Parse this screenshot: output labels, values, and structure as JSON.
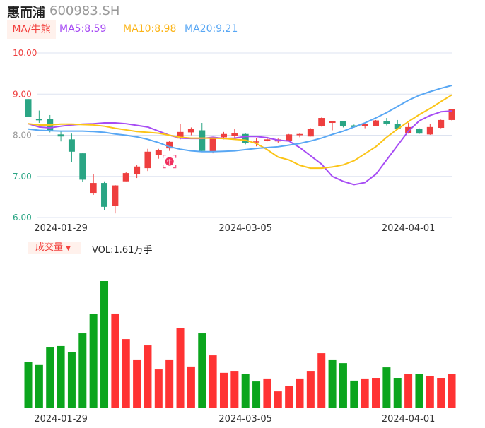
{
  "header": {
    "name": "惠而浦",
    "code": "600983.SH",
    "ma_button": "MA/牛熊",
    "ma5": "MA5:8.59",
    "ma10": "MA10:8.98",
    "ma20": "MA20:9.21"
  },
  "volume_header": {
    "button": "成交量",
    "arrow": "▼",
    "value": "VOL:1.61万手"
  },
  "colors": {
    "up": "#ee3f3f",
    "down": "#2aa584",
    "vol_up": "#ff3333",
    "vol_down": "#0ba51d",
    "ma5": "#a64bf4",
    "ma10": "#fbc417",
    "ma20": "#58a7f4",
    "grid": "#dde3f0"
  },
  "icons": {
    "signal": "bull-signal-icon"
  },
  "chart_data": [
    {
      "type": "candlestick",
      "title": "惠而浦 600983.SH",
      "ylim": [
        6,
        10
      ],
      "y_ticks": [
        {
          "v": 10,
          "label": "10.00",
          "color": "#ee3f3f"
        },
        {
          "v": 9,
          "label": "9.00",
          "color": "#ee3f3f"
        },
        {
          "v": 8,
          "label": "8.00",
          "color": "#999999"
        },
        {
          "v": 7,
          "label": "7.00",
          "color": "#2aa584"
        },
        {
          "v": 6,
          "label": "6.00",
          "color": "#2aa584"
        }
      ],
      "x_ticks": [
        {
          "index": 3,
          "label": "2024-01-29"
        },
        {
          "index": 20,
          "label": "2024-03-05"
        },
        {
          "index": 35,
          "label": "2024-04-01"
        }
      ],
      "ohlc": [
        [
          8.88,
          8.45,
          8.88,
          8.45
        ],
        [
          8.39,
          8.37,
          8.6,
          8.3
        ],
        [
          8.4,
          8.1,
          8.49,
          8.07
        ],
        [
          8.02,
          7.97,
          8.1,
          7.85
        ],
        [
          7.9,
          7.6,
          8.04,
          7.34
        ],
        [
          7.56,
          6.92,
          7.56,
          6.86
        ],
        [
          6.6,
          6.84,
          7.06,
          6.55
        ],
        [
          6.84,
          6.26,
          6.88,
          6.18
        ],
        [
          6.28,
          6.78,
          6.79,
          6.1
        ],
        [
          6.88,
          7.08,
          7.1,
          6.88
        ],
        [
          7.06,
          7.24,
          7.27,
          6.96
        ],
        [
          7.2,
          7.6,
          7.67,
          7.13
        ],
        [
          7.52,
          7.64,
          7.67,
          7.43
        ],
        [
          7.68,
          7.84,
          7.86,
          7.62
        ],
        [
          7.92,
          8.08,
          8.27,
          7.9
        ],
        [
          8.07,
          8.15,
          8.19,
          8.0
        ],
        [
          8.12,
          7.62,
          8.3,
          7.6
        ],
        [
          7.6,
          7.94,
          7.96,
          7.56
        ],
        [
          7.95,
          8.03,
          8.08,
          7.9
        ],
        [
          7.98,
          8.05,
          8.15,
          7.93
        ],
        [
          8.03,
          7.82,
          8.05,
          7.78
        ],
        [
          7.83,
          7.85,
          7.93,
          7.73
        ],
        [
          7.86,
          7.9,
          7.96,
          7.85
        ],
        [
          7.85,
          7.9,
          7.92,
          7.82
        ],
        [
          7.86,
          8.02,
          8.03,
          7.85
        ],
        [
          8.0,
          8.03,
          8.05,
          7.95
        ],
        [
          7.97,
          8.16,
          8.17,
          7.97
        ],
        [
          8.22,
          8.42,
          8.43,
          8.21
        ],
        [
          8.3,
          8.35,
          8.35,
          8.12
        ],
        [
          8.35,
          8.23,
          8.35,
          8.19
        ],
        [
          8.24,
          8.2,
          8.26,
          8.18
        ],
        [
          8.22,
          8.27,
          8.28,
          8.17
        ],
        [
          8.22,
          8.36,
          8.37,
          8.22
        ],
        [
          8.34,
          8.28,
          8.42,
          8.24
        ],
        [
          8.28,
          8.15,
          8.37,
          8.13
        ],
        [
          8.06,
          8.2,
          8.3,
          8.04
        ],
        [
          8.15,
          8.04,
          8.17,
          8.03
        ],
        [
          8.02,
          8.2,
          8.27,
          8.01
        ],
        [
          8.18,
          8.37,
          8.38,
          8.17
        ],
        [
          8.37,
          8.63,
          8.64,
          8.36
        ]
      ],
      "series": [
        {
          "name": "MA5",
          "color": "#a64bf4",
          "values": [
            8.28,
            8.2,
            8.18,
            8.22,
            8.25,
            8.27,
            8.28,
            8.3,
            8.3,
            8.28,
            8.24,
            8.2,
            8.1,
            8.0,
            7.93,
            7.92,
            7.92,
            7.95,
            7.92,
            7.93,
            7.97,
            7.97,
            7.94,
            7.88,
            7.86,
            7.7,
            7.5,
            7.3,
            7.0,
            6.88,
            6.8,
            6.85,
            7.05,
            7.4,
            7.75,
            8.1,
            8.35,
            8.48,
            8.57,
            8.59
          ]
        },
        {
          "name": "MA10",
          "color": "#fbc417",
          "values": [
            8.28,
            8.25,
            8.25,
            8.27,
            8.27,
            8.26,
            8.25,
            8.22,
            8.17,
            8.13,
            8.09,
            8.07,
            8.05,
            8.0,
            7.95,
            7.93,
            7.93,
            7.93,
            7.92,
            7.9,
            7.88,
            7.8,
            7.65,
            7.47,
            7.4,
            7.27,
            7.2,
            7.2,
            7.23,
            7.28,
            7.38,
            7.55,
            7.72,
            7.95,
            8.15,
            8.33,
            8.5,
            8.65,
            8.82,
            8.98
          ]
        },
        {
          "name": "MA20",
          "color": "#58a7f4",
          "values": [
            8.15,
            8.12,
            8.11,
            8.1,
            8.1,
            8.1,
            8.09,
            8.07,
            8.03,
            8.0,
            7.96,
            7.9,
            7.82,
            7.72,
            7.66,
            7.62,
            7.6,
            7.6,
            7.61,
            7.62,
            7.65,
            7.68,
            7.7,
            7.72,
            7.76,
            7.8,
            7.86,
            7.93,
            8.02,
            8.1,
            8.2,
            8.3,
            8.42,
            8.55,
            8.7,
            8.85,
            8.97,
            9.06,
            9.14,
            9.21
          ]
        }
      ],
      "signal_index": 13
    },
    {
      "type": "bar",
      "title": "成交量",
      "unit": "万手",
      "ylim": [
        0,
        6.1
      ],
      "values": [
        2.21,
        2.05,
        2.88,
        2.95,
        2.68,
        3.55,
        4.46,
        6.03,
        4.49,
        3.28,
        2.28,
        2.98,
        1.84,
        2.28,
        3.79,
        1.98,
        3.55,
        2.51,
        1.68,
        1.74,
        1.64,
        1.27,
        1.41,
        0.8,
        1.07,
        1.41,
        1.74,
        2.61,
        2.28,
        2.14,
        1.31,
        1.41,
        1.44,
        1.94,
        1.44,
        1.61,
        1.61,
        1.51,
        1.44,
        1.61
      ],
      "direction": [
        "d",
        "d",
        "d",
        "d",
        "d",
        "d",
        "d",
        "d",
        "u",
        "u",
        "u",
        "u",
        "u",
        "u",
        "u",
        "u",
        "d",
        "u",
        "u",
        "u",
        "d",
        "d",
        "u",
        "u",
        "u",
        "u",
        "u",
        "u",
        "d",
        "d",
        "d",
        "u",
        "u",
        "d",
        "d",
        "u",
        "d",
        "u",
        "u",
        "u"
      ],
      "x_ticks": [
        {
          "index": 3,
          "label": "2024-01-29"
        },
        {
          "index": 20,
          "label": "2024-03-05"
        },
        {
          "index": 35,
          "label": "2024-04-01"
        }
      ]
    }
  ]
}
